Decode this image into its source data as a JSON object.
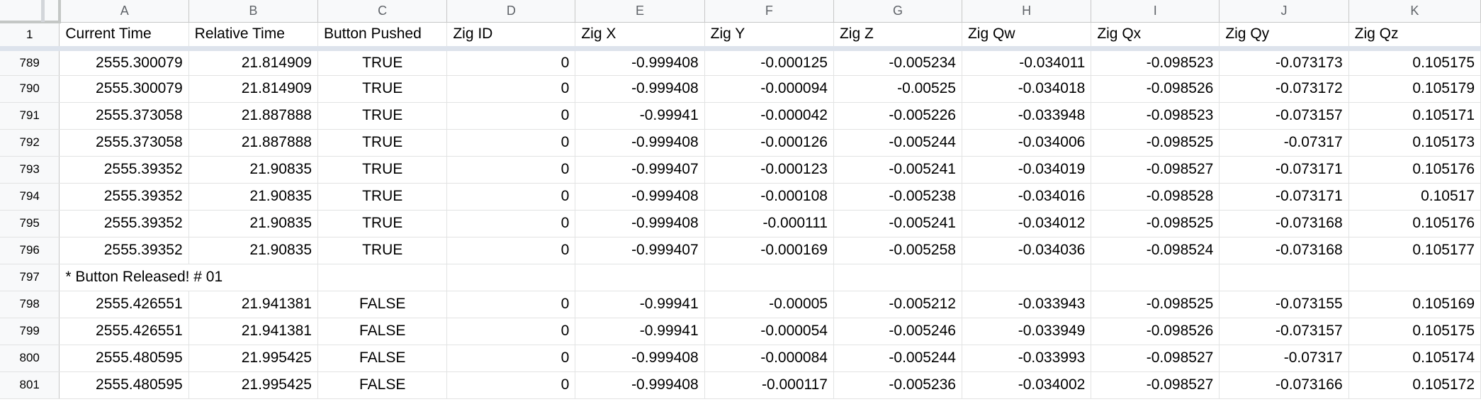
{
  "column_letters": [
    "A",
    "B",
    "C",
    "D",
    "E",
    "F",
    "G",
    "H",
    "I",
    "J",
    "K"
  ],
  "header_row": {
    "row_number": "1",
    "cells": [
      "Current Time",
      "Relative Time",
      "Button Pushed",
      "Zig ID",
      "Zig X",
      "Zig Y",
      "Zig Z",
      "Zig Qw",
      "Zig Qx",
      "Zig Qy",
      "Zig Qz"
    ]
  },
  "rows": [
    {
      "row_number": "789",
      "cells": [
        "2555.300079",
        "21.814909",
        "TRUE",
        "0",
        "-0.999408",
        "-0.000125",
        "-0.005234",
        "-0.034011",
        "-0.098523",
        "-0.073173",
        "0.105175"
      ]
    },
    {
      "row_number": "790",
      "cells": [
        "2555.300079",
        "21.814909",
        "TRUE",
        "0",
        "-0.999408",
        "-0.000094",
        "-0.00525",
        "-0.034018",
        "-0.098526",
        "-0.073172",
        "0.105179"
      ]
    },
    {
      "row_number": "791",
      "cells": [
        "2555.373058",
        "21.887888",
        "TRUE",
        "0",
        "-0.99941",
        "-0.000042",
        "-0.005226",
        "-0.033948",
        "-0.098523",
        "-0.073157",
        "0.105171"
      ]
    },
    {
      "row_number": "792",
      "cells": [
        "2555.373058",
        "21.887888",
        "TRUE",
        "0",
        "-0.999408",
        "-0.000126",
        "-0.005244",
        "-0.034006",
        "-0.098525",
        "-0.07317",
        "0.105173"
      ]
    },
    {
      "row_number": "793",
      "cells": [
        "2555.39352",
        "21.90835",
        "TRUE",
        "0",
        "-0.999407",
        "-0.000123",
        "-0.005241",
        "-0.034019",
        "-0.098527",
        "-0.073171",
        "0.105176"
      ]
    },
    {
      "row_number": "794",
      "cells": [
        "2555.39352",
        "21.90835",
        "TRUE",
        "0",
        "-0.999408",
        "-0.000108",
        "-0.005238",
        "-0.034016",
        "-0.098528",
        "-0.073171",
        "0.10517"
      ]
    },
    {
      "row_number": "795",
      "cells": [
        "2555.39352",
        "21.90835",
        "TRUE",
        "0",
        "-0.999408",
        "-0.000111",
        "-0.005241",
        "-0.034012",
        "-0.098525",
        "-0.073168",
        "0.105176"
      ]
    },
    {
      "row_number": "796",
      "cells": [
        "2555.39352",
        "21.90835",
        "TRUE",
        "0",
        "-0.999407",
        "-0.000169",
        "-0.005258",
        "-0.034036",
        "-0.098524",
        "-0.073168",
        "0.105177"
      ]
    },
    {
      "row_number": "797",
      "note": "* Button Released! # 01"
    },
    {
      "row_number": "798",
      "cells": [
        "2555.426551",
        "21.941381",
        "FALSE",
        "0",
        "-0.99941",
        "-0.00005",
        "-0.005212",
        "-0.033943",
        "-0.098525",
        "-0.073155",
        "0.105169"
      ]
    },
    {
      "row_number": "799",
      "cells": [
        "2555.426551",
        "21.941381",
        "FALSE",
        "0",
        "-0.99941",
        "-0.000054",
        "-0.005246",
        "-0.033949",
        "-0.098526",
        "-0.073157",
        "0.105175"
      ]
    },
    {
      "row_number": "800",
      "cells": [
        "2555.480595",
        "21.995425",
        "FALSE",
        "0",
        "-0.999408",
        "-0.000084",
        "-0.005244",
        "-0.033993",
        "-0.098527",
        "-0.07317",
        "0.105174"
      ]
    },
    {
      "row_number": "801",
      "cells": [
        "2555.480595",
        "21.995425",
        "FALSE",
        "0",
        "-0.999408",
        "-0.000117",
        "-0.005236",
        "-0.034002",
        "-0.098527",
        "-0.073166",
        "0.105172"
      ]
    }
  ],
  "colors": {
    "header_background": "#f8f9fa",
    "header_text": "#5f6368",
    "gridline": "#e2e3e3",
    "freeze_bar": "#dde3ec"
  }
}
